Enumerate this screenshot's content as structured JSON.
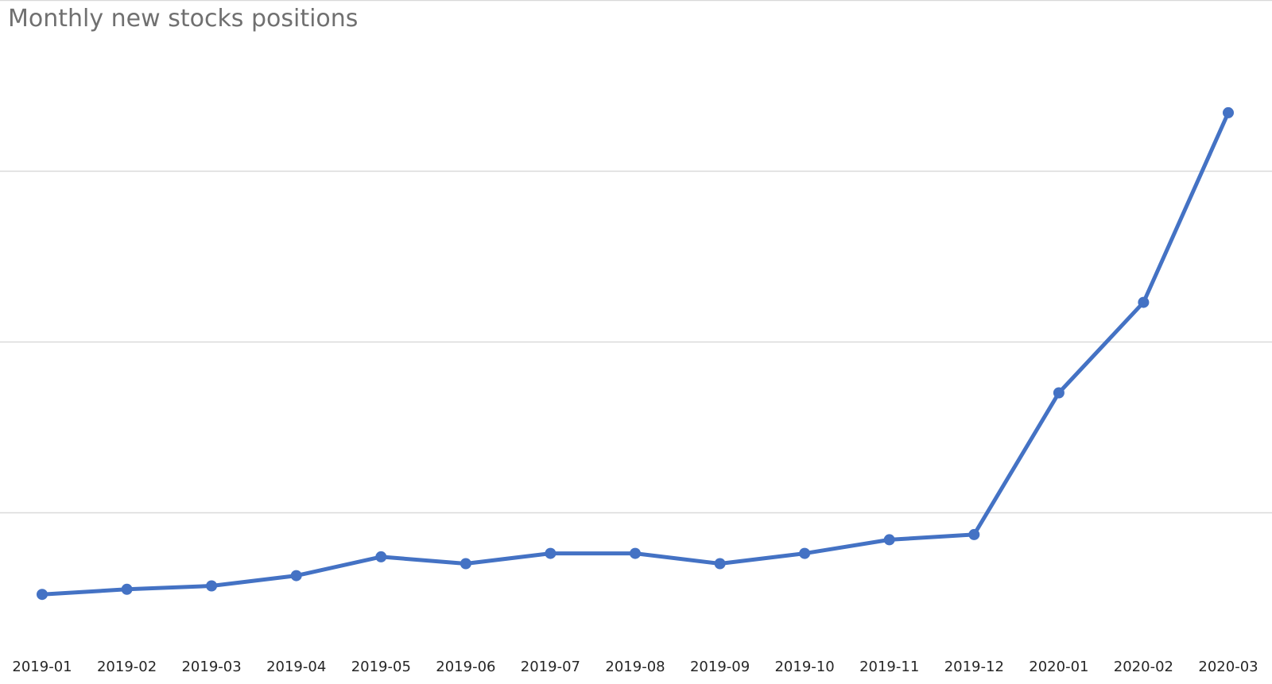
{
  "chart_data": {
    "type": "line",
    "title": "Monthly new stocks positions",
    "xlabel": "",
    "ylabel": "",
    "categories": [
      "2019-01",
      "2019-02",
      "2019-03",
      "2019-04",
      "2019-05",
      "2019-06",
      "2019-07",
      "2019-08",
      "2019-09",
      "2019-10",
      "2019-11",
      "2019-12",
      "2020-01",
      "2020-02",
      "2020-03"
    ],
    "series": [
      {
        "values": [
          -0.48,
          -0.45,
          -0.43,
          -0.37,
          -0.26,
          -0.3,
          -0.24,
          -0.24,
          -0.3,
          -0.24,
          -0.16,
          -0.13,
          0.7,
          1.23,
          2.34
        ]
      }
    ],
    "ylim": [
      -1,
      3
    ],
    "y_gridlines": [
      0,
      1,
      2,
      3
    ],
    "y_tick_labels_shown": false,
    "grid": true,
    "legend": "none",
    "colors": {
      "line": "#4472C4",
      "gridline": "#d9d9d9",
      "title": "#707070",
      "tick_label": "#262626"
    }
  }
}
